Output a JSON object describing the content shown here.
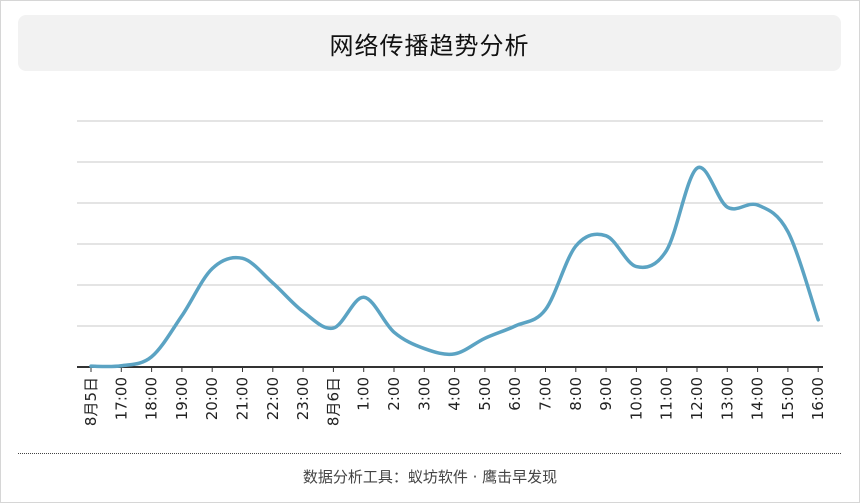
{
  "title": "网络传播趋势分析",
  "footer": "数据分析工具：蚁坊软件 · 鹰击早发现",
  "colors": {
    "line": "#5ba3c3",
    "grid": "#c8c8c8",
    "axis": "#333333"
  },
  "chart_data": {
    "type": "line",
    "title": "网络传播趋势分析",
    "xlabel": "",
    "ylabel": "",
    "ylim": [
      0,
      6
    ],
    "grid": true,
    "legend": "none",
    "categories": [
      "8月5日",
      "17:00",
      "18:00",
      "19:00",
      "20:00",
      "21:00",
      "22:00",
      "23:00",
      "8月6日",
      "1:00",
      "2:00",
      "3:00",
      "4:00",
      "5:00",
      "6:00",
      "7:00",
      "8:00",
      "9:00",
      "10:00",
      "11:00",
      "12:00",
      "13:00",
      "14:00",
      "15:00",
      "16:00"
    ],
    "series": [
      {
        "values": [
          0.02,
          0.03,
          0.25,
          1.25,
          2.4,
          2.65,
          2.05,
          1.35,
          0.95,
          1.7,
          0.85,
          0.45,
          0.32,
          0.7,
          1.0,
          1.4,
          2.95,
          3.2,
          2.45,
          2.85,
          4.85,
          3.9,
          3.95,
          3.3,
          1.15
        ]
      }
    ]
  }
}
